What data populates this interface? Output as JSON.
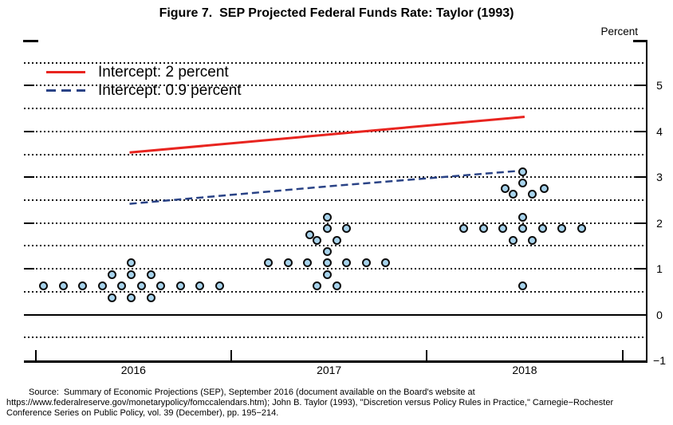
{
  "title": "Figure 7.  SEP Projected Federal Funds Rate: Taylor (1993)",
  "axis_unit_label": "Percent",
  "legend": [
    {
      "label": "Intercept: 2 percent",
      "color": "#e8241f",
      "style": "solid"
    },
    {
      "label": "Intercept: 0.9 percent",
      "color": "#2a4386",
      "style": "dashed"
    }
  ],
  "source_lines": [
    "Source:  Summary of Economic Projections (SEP), September 2016 (document available on the Board's website at",
    "https://www.federalreserve.gov/monetarypolicy/fomccalendars.htm); John B. Taylor (1993), \"Discretion versus Policy Rules in Practice,\" Carnegie−Rochester",
    "Conference Series on Public Policy, vol. 39 (December), pp. 195−214."
  ],
  "chart_data": {
    "type": "scatter",
    "title": "Figure 7.  SEP Projected Federal Funds Rate: Taylor (1993)",
    "ylabel": "Percent",
    "x_domain": [
      2015.94,
      2019.12
    ],
    "y_domain": [
      -1,
      6
    ],
    "grid": {
      "min": -0.5,
      "max": 5.5,
      "step": 0.5,
      "solid_at": 0,
      "style": "dotted"
    },
    "y_axis_ticks": [
      1,
      2,
      3,
      4,
      5
    ],
    "y_tick_labels": [
      {
        "v": 5,
        "label": "5"
      },
      {
        "v": 4,
        "label": "4"
      },
      {
        "v": 3,
        "label": "3"
      },
      {
        "v": 2,
        "label": "2"
      },
      {
        "v": 1,
        "label": "1"
      },
      {
        "v": 0,
        "label": "0"
      },
      {
        "v": -1,
        "label": "−1"
      }
    ],
    "x_axis_ticks": [
      2016,
      2017,
      2018,
      2019
    ],
    "x_tick_labels": [
      {
        "x": 2016.5,
        "label": "2016"
      },
      {
        "x": 2017.5,
        "label": "2017"
      },
      {
        "x": 2018.5,
        "label": "2018"
      }
    ],
    "legend_position": "top-left-inside",
    "series": [
      {
        "name": "Intercept: 2 percent",
        "style": "solid",
        "color": "#e8241f",
        "width": 3,
        "points": [
          [
            2016.48,
            3.54
          ],
          [
            2017.49,
            3.93
          ],
          [
            2018.5,
            4.32
          ]
        ]
      },
      {
        "name": "Intercept: 0.9 percent",
        "style": "dashed",
        "color": "#2a4386",
        "width": 2.5,
        "points": [
          [
            2016.48,
            2.42
          ],
          [
            2017.49,
            2.8
          ],
          [
            2018.5,
            3.15
          ]
        ]
      }
    ],
    "dots": {
      "name": "SEP participant federal funds rate projections (percent)",
      "fill": "#a7d3ec",
      "stroke": "#0d0d0d",
      "points": [
        [
          2016.39,
          0.375
        ],
        [
          2016.49,
          0.375
        ],
        [
          2016.59,
          0.375
        ],
        [
          2016.04,
          0.625
        ],
        [
          2016.14,
          0.625
        ],
        [
          2016.24,
          0.625
        ],
        [
          2016.34,
          0.625
        ],
        [
          2016.44,
          0.625
        ],
        [
          2016.54,
          0.625
        ],
        [
          2016.64,
          0.625
        ],
        [
          2016.74,
          0.625
        ],
        [
          2016.84,
          0.625
        ],
        [
          2016.94,
          0.625
        ],
        [
          2016.39,
          0.875
        ],
        [
          2016.49,
          0.875
        ],
        [
          2016.59,
          0.875
        ],
        [
          2016.49,
          1.125
        ],
        [
          2017.44,
          0.625
        ],
        [
          2017.54,
          0.625
        ],
        [
          2017.49,
          0.875
        ],
        [
          2017.19,
          1.125
        ],
        [
          2017.29,
          1.125
        ],
        [
          2017.39,
          1.125
        ],
        [
          2017.49,
          1.125
        ],
        [
          2017.59,
          1.125
        ],
        [
          2017.69,
          1.125
        ],
        [
          2017.79,
          1.125
        ],
        [
          2017.49,
          1.375
        ],
        [
          2017.44,
          1.625
        ],
        [
          2017.54,
          1.625
        ],
        [
          2017.4,
          1.75
        ],
        [
          2017.49,
          1.875
        ],
        [
          2017.59,
          1.875
        ],
        [
          2017.49,
          2.125
        ],
        [
          2018.49,
          0.625
        ],
        [
          2018.44,
          1.625
        ],
        [
          2018.54,
          1.625
        ],
        [
          2018.19,
          1.875
        ],
        [
          2018.29,
          1.875
        ],
        [
          2018.39,
          1.875
        ],
        [
          2018.49,
          1.875
        ],
        [
          2018.59,
          1.875
        ],
        [
          2018.69,
          1.875
        ],
        [
          2018.79,
          1.875
        ],
        [
          2018.49,
          2.125
        ],
        [
          2018.44,
          2.625
        ],
        [
          2018.54,
          2.625
        ],
        [
          2018.4,
          2.75
        ],
        [
          2018.6,
          2.75
        ],
        [
          2018.49,
          2.875
        ],
        [
          2018.49,
          3.125
        ]
      ]
    }
  }
}
